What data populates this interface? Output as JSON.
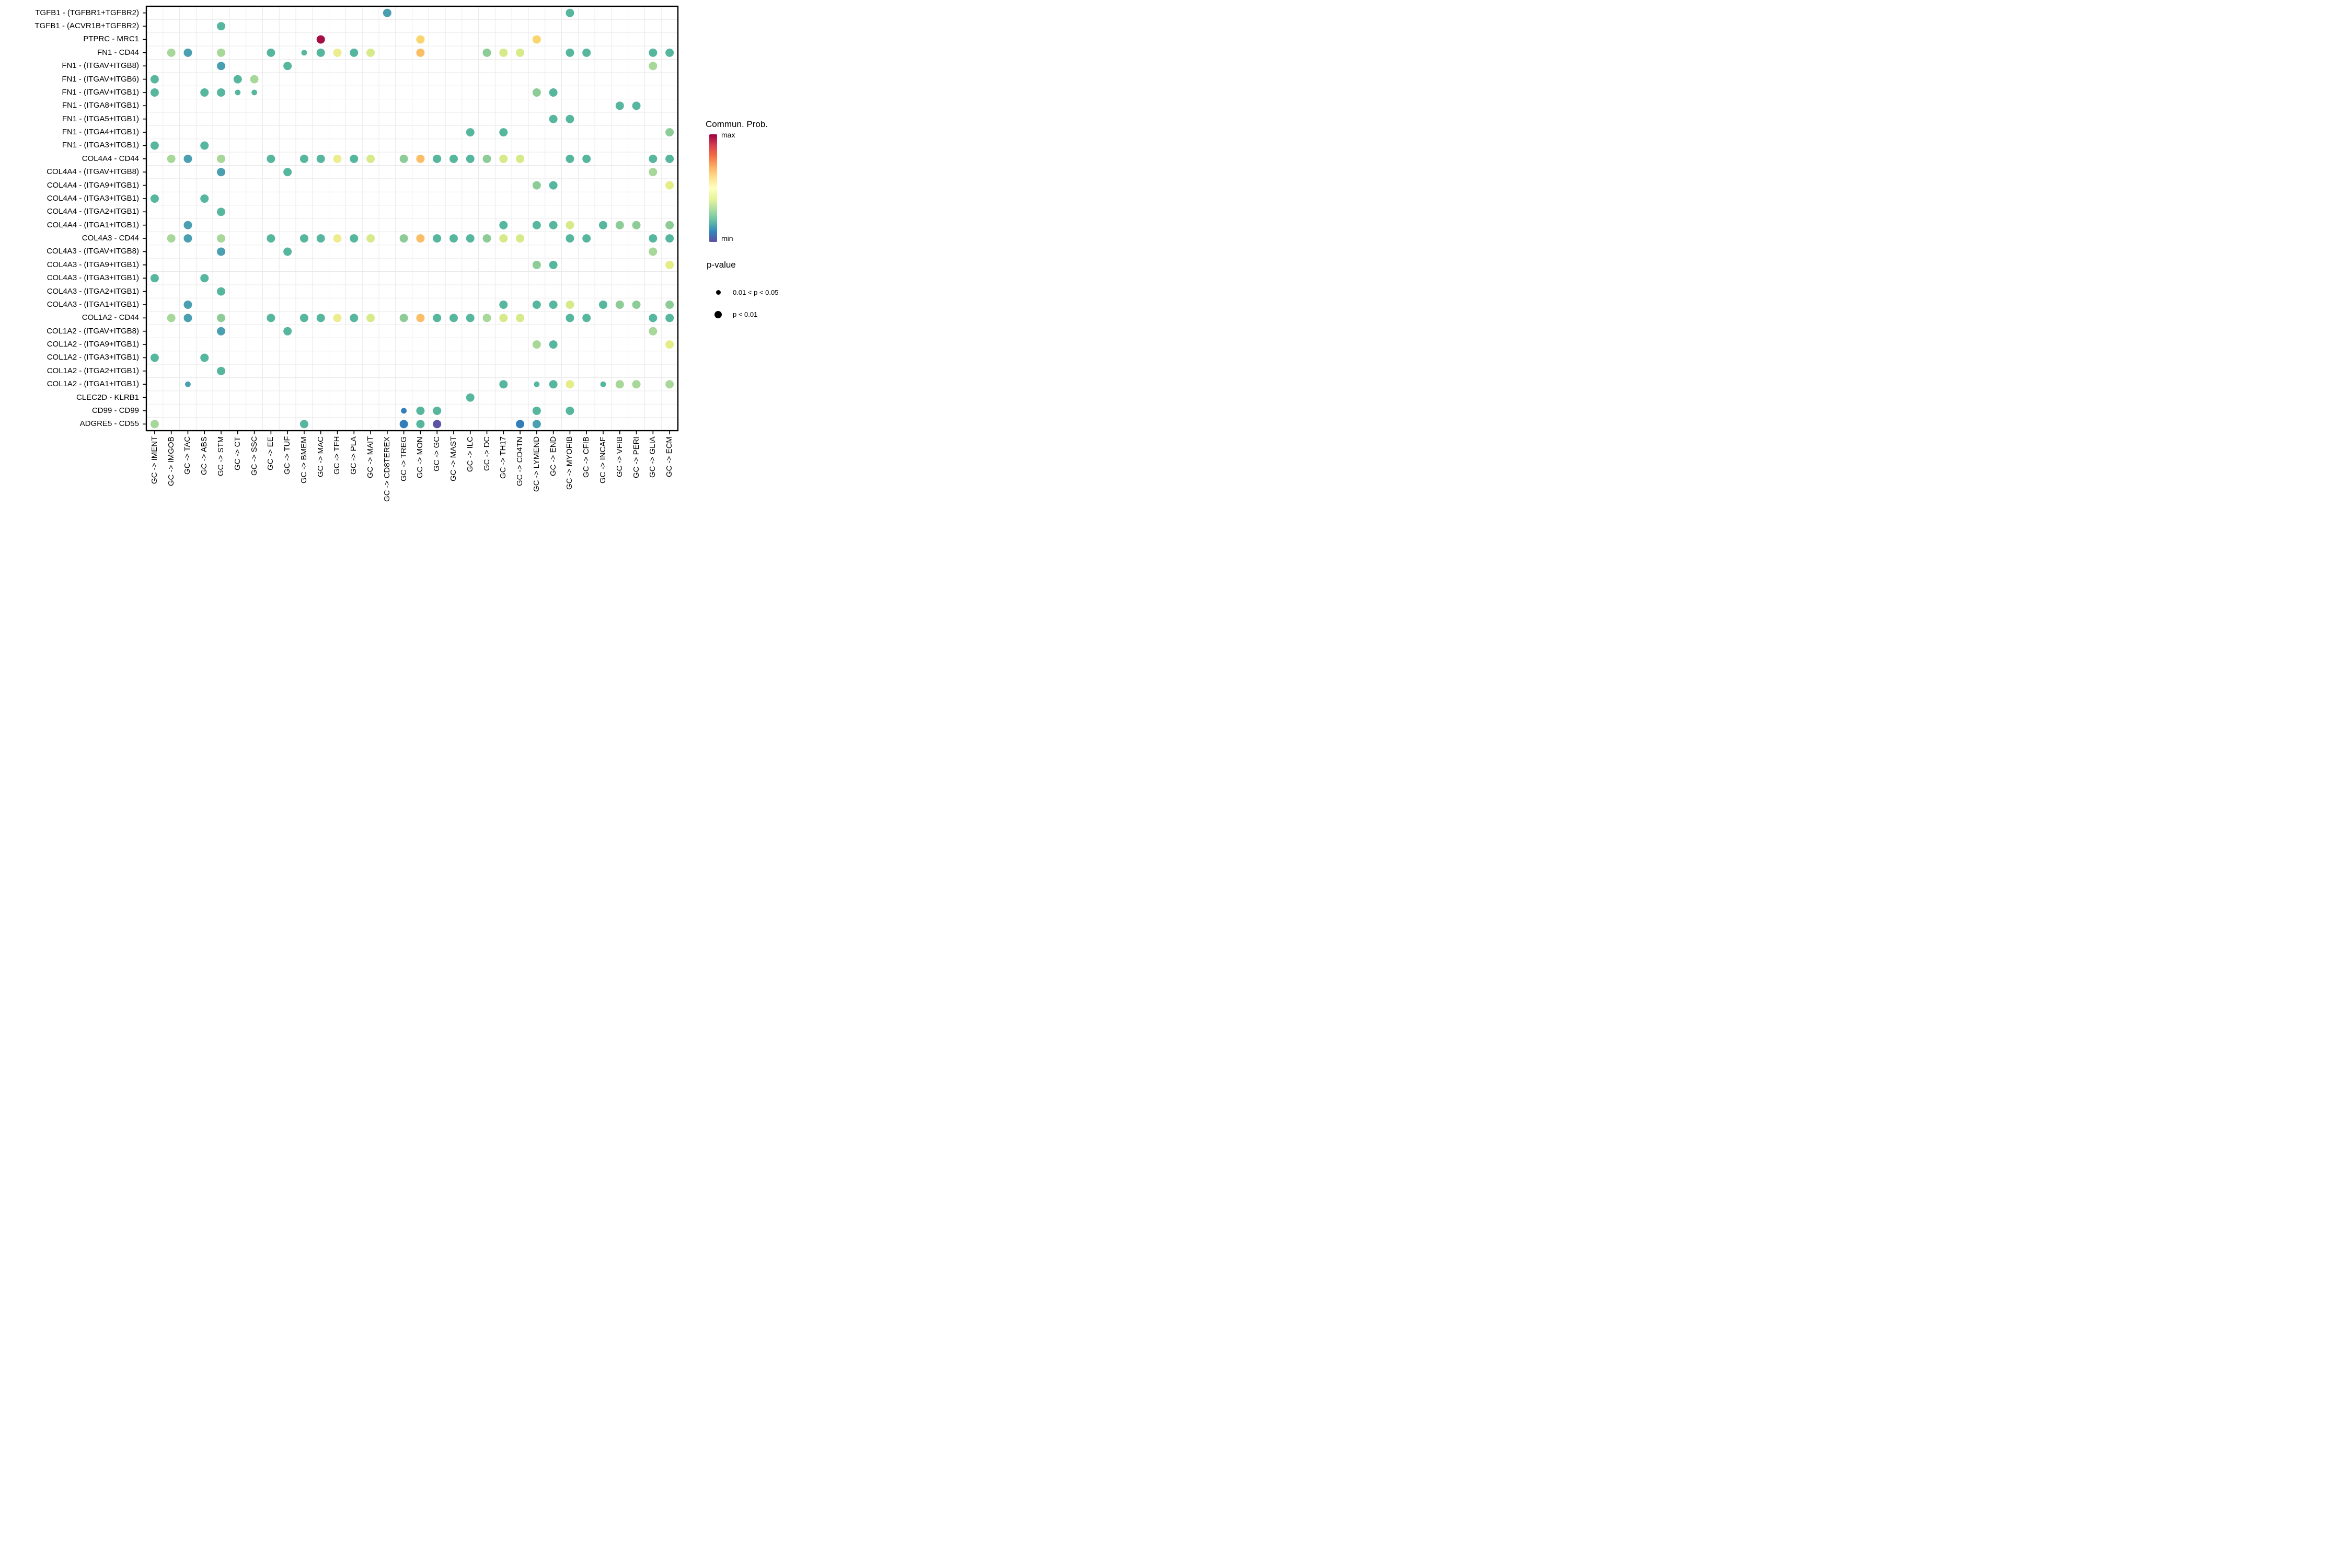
{
  "chart_data": {
    "type": "scatter",
    "subtype": "bubble-dotplot",
    "title": "",
    "xlabel": "",
    "ylabel": "",
    "grid": "on",
    "x_categories": [
      "GC -> IMENT",
      "GC -> IMGOB",
      "GC -> TAC",
      "GC -> ABS",
      "GC -> STM",
      "GC -> CT",
      "GC -> SSC",
      "GC -> EE",
      "GC -> TUF",
      "GC -> BMEM",
      "GC -> MAC",
      "GC -> TFH",
      "GC -> PLA",
      "GC -> MAIT",
      "GC -> CD8TEREX",
      "GC -> TREG",
      "GC -> MON",
      "GC -> GC",
      "GC -> MAST",
      "GC -> ILC",
      "GC -> DC",
      "GC -> TH17",
      "GC -> CD4TN",
      "GC -> LYMEND",
      "GC -> END",
      "GC -> MYOFIB",
      "GC -> CFIB",
      "GC -> INCAF",
      "GC -> VFIB",
      "GC -> PERI",
      "GC -> GLIA",
      "GC -> ECM"
    ],
    "y_categories": [
      "TGFB1 - (TGFBR1+TGFBR2)",
      "TGFB1 - (ACVR1B+TGFBR2)",
      "PTPRC - MRC1",
      "FN1 - CD44",
      "FN1 - (ITGAV+ITGB8)",
      "FN1 - (ITGAV+ITGB6)",
      "FN1 - (ITGAV+ITGB1)",
      "FN1 - (ITGA8+ITGB1)",
      "FN1 - (ITGA5+ITGB1)",
      "FN1 - (ITGA4+ITGB1)",
      "FN1 - (ITGA3+ITGB1)",
      "COL4A4 - CD44",
      "COL4A4 - (ITGAV+ITGB8)",
      "COL4A4 - (ITGA9+ITGB1)",
      "COL4A4 - (ITGA3+ITGB1)",
      "COL4A4 - (ITGA2+ITGB1)",
      "COL4A4 - (ITGA1+ITGB1)",
      "COL4A3 - CD44",
      "COL4A3 - (ITGAV+ITGB8)",
      "COL4A3 - (ITGA9+ITGB1)",
      "COL4A3 - (ITGA3+ITGB1)",
      "COL4A3 - (ITGA2+ITGB1)",
      "COL4A3 - (ITGA1+ITGB1)",
      "COL1A2 - CD44",
      "COL1A2 - (ITGAV+ITGB8)",
      "COL1A2 - (ITGA9+ITGB1)",
      "COL1A2 - (ITGA3+ITGB1)",
      "COL1A2 - (ITGA2+ITGB1)",
      "COL1A2 - (ITGA1+ITGB1)",
      "CLEC2D - KLRB1",
      "CD99 - CD99",
      "ADGRE5 - CD55"
    ],
    "palette": {
      "red": "#A60C45",
      "amber": "#FAD46E",
      "orange": "#FBBE66",
      "yellow": "#EDEC8F",
      "yellowgreen": "#D6EA89",
      "limeyellow": "#E4ED86",
      "lightgreen": "#A8D79A",
      "green": "#8DCC97",
      "teal": "#57B79E",
      "steelblue": "#4A9FB1",
      "blue": "#337EB8",
      "purple": "#5B53A4"
    },
    "size_encoding": {
      "L": "p < 0.01",
      "S": "0.01 < p < 0.05"
    },
    "points": [
      [
        1,
        15,
        "steelblue",
        "L"
      ],
      [
        1,
        26,
        "teal",
        "L"
      ],
      [
        2,
        5,
        "teal",
        "L"
      ],
      [
        3,
        11,
        "red",
        "L"
      ],
      [
        3,
        17,
        "amber",
        "L"
      ],
      [
        3,
        24,
        "amber",
        "L"
      ],
      [
        4,
        2,
        "lightgreen",
        "L"
      ],
      [
        4,
        3,
        "steelblue",
        "L"
      ],
      [
        4,
        5,
        "lightgreen",
        "L"
      ],
      [
        4,
        8,
        "teal",
        "L"
      ],
      [
        4,
        10,
        "teal",
        "S"
      ],
      [
        4,
        11,
        "teal",
        "L"
      ],
      [
        4,
        12,
        "yellow",
        "L"
      ],
      [
        4,
        13,
        "teal",
        "L"
      ],
      [
        4,
        14,
        "yellowgreen",
        "L"
      ],
      [
        4,
        17,
        "orange",
        "L"
      ],
      [
        4,
        21,
        "green",
        "L"
      ],
      [
        4,
        22,
        "yellowgreen",
        "L"
      ],
      [
        4,
        23,
        "yellowgreen",
        "L"
      ],
      [
        4,
        26,
        "teal",
        "L"
      ],
      [
        4,
        27,
        "teal",
        "L"
      ],
      [
        4,
        31,
        "teal",
        "L"
      ],
      [
        4,
        32,
        "teal",
        "L"
      ],
      [
        5,
        5,
        "steelblue",
        "L"
      ],
      [
        5,
        9,
        "teal",
        "L"
      ],
      [
        5,
        31,
        "lightgreen",
        "L"
      ],
      [
        6,
        1,
        "teal",
        "L"
      ],
      [
        6,
        6,
        "teal",
        "L"
      ],
      [
        6,
        7,
        "lightgreen",
        "L"
      ],
      [
        7,
        1,
        "teal",
        "L"
      ],
      [
        7,
        4,
        "teal",
        "L"
      ],
      [
        7,
        5,
        "teal",
        "L"
      ],
      [
        7,
        6,
        "teal",
        "S"
      ],
      [
        7,
        7,
        "teal",
        "S"
      ],
      [
        7,
        24,
        "green",
        "L"
      ],
      [
        7,
        25,
        "teal",
        "L"
      ],
      [
        8,
        29,
        "teal",
        "L"
      ],
      [
        8,
        30,
        "teal",
        "L"
      ],
      [
        9,
        25,
        "teal",
        "L"
      ],
      [
        9,
        26,
        "teal",
        "L"
      ],
      [
        10,
        20,
        "teal",
        "L"
      ],
      [
        10,
        22,
        "teal",
        "L"
      ],
      [
        10,
        32,
        "green",
        "L"
      ],
      [
        11,
        1,
        "teal",
        "L"
      ],
      [
        11,
        4,
        "teal",
        "L"
      ],
      [
        12,
        2,
        "lightgreen",
        "L"
      ],
      [
        12,
        3,
        "steelblue",
        "L"
      ],
      [
        12,
        5,
        "lightgreen",
        "L"
      ],
      [
        12,
        8,
        "teal",
        "L"
      ],
      [
        12,
        10,
        "teal",
        "L"
      ],
      [
        12,
        11,
        "teal",
        "L"
      ],
      [
        12,
        12,
        "yellow",
        "L"
      ],
      [
        12,
        13,
        "teal",
        "L"
      ],
      [
        12,
        14,
        "yellowgreen",
        "L"
      ],
      [
        12,
        16,
        "green",
        "L"
      ],
      [
        12,
        17,
        "orange",
        "L"
      ],
      [
        12,
        18,
        "teal",
        "L"
      ],
      [
        12,
        19,
        "teal",
        "L"
      ],
      [
        12,
        20,
        "teal",
        "L"
      ],
      [
        12,
        21,
        "green",
        "L"
      ],
      [
        12,
        22,
        "yellowgreen",
        "L"
      ],
      [
        12,
        23,
        "yellowgreen",
        "L"
      ],
      [
        12,
        26,
        "teal",
        "L"
      ],
      [
        12,
        27,
        "teal",
        "L"
      ],
      [
        12,
        31,
        "teal",
        "L"
      ],
      [
        12,
        32,
        "teal",
        "L"
      ],
      [
        13,
        5,
        "steelblue",
        "L"
      ],
      [
        13,
        9,
        "teal",
        "L"
      ],
      [
        13,
        31,
        "lightgreen",
        "L"
      ],
      [
        14,
        24,
        "green",
        "L"
      ],
      [
        14,
        25,
        "teal",
        "L"
      ],
      [
        14,
        32,
        "limeyellow",
        "L"
      ],
      [
        15,
        1,
        "teal",
        "L"
      ],
      [
        15,
        4,
        "teal",
        "L"
      ],
      [
        16,
        5,
        "teal",
        "L"
      ],
      [
        17,
        3,
        "steelblue",
        "L"
      ],
      [
        17,
        22,
        "teal",
        "L"
      ],
      [
        17,
        24,
        "teal",
        "L"
      ],
      [
        17,
        25,
        "teal",
        "L"
      ],
      [
        17,
        26,
        "yellowgreen",
        "L"
      ],
      [
        17,
        28,
        "teal",
        "L"
      ],
      [
        17,
        29,
        "green",
        "L"
      ],
      [
        17,
        30,
        "green",
        "L"
      ],
      [
        17,
        32,
        "green",
        "L"
      ],
      [
        18,
        2,
        "lightgreen",
        "L"
      ],
      [
        18,
        3,
        "steelblue",
        "L"
      ],
      [
        18,
        5,
        "lightgreen",
        "L"
      ],
      [
        18,
        8,
        "teal",
        "L"
      ],
      [
        18,
        10,
        "teal",
        "L"
      ],
      [
        18,
        11,
        "teal",
        "L"
      ],
      [
        18,
        12,
        "yellow",
        "L"
      ],
      [
        18,
        13,
        "teal",
        "L"
      ],
      [
        18,
        14,
        "yellowgreen",
        "L"
      ],
      [
        18,
        16,
        "green",
        "L"
      ],
      [
        18,
        17,
        "orange",
        "L"
      ],
      [
        18,
        18,
        "teal",
        "L"
      ],
      [
        18,
        19,
        "teal",
        "L"
      ],
      [
        18,
        20,
        "teal",
        "L"
      ],
      [
        18,
        21,
        "green",
        "L"
      ],
      [
        18,
        22,
        "yellowgreen",
        "L"
      ],
      [
        18,
        23,
        "yellowgreen",
        "L"
      ],
      [
        18,
        26,
        "teal",
        "L"
      ],
      [
        18,
        27,
        "teal",
        "L"
      ],
      [
        18,
        31,
        "teal",
        "L"
      ],
      [
        18,
        32,
        "teal",
        "L"
      ],
      [
        19,
        5,
        "steelblue",
        "L"
      ],
      [
        19,
        9,
        "teal",
        "L"
      ],
      [
        19,
        31,
        "lightgreen",
        "L"
      ],
      [
        20,
        24,
        "green",
        "L"
      ],
      [
        20,
        25,
        "teal",
        "L"
      ],
      [
        20,
        32,
        "limeyellow",
        "L"
      ],
      [
        21,
        1,
        "teal",
        "L"
      ],
      [
        21,
        4,
        "teal",
        "L"
      ],
      [
        22,
        5,
        "teal",
        "L"
      ],
      [
        23,
        3,
        "steelblue",
        "L"
      ],
      [
        23,
        22,
        "teal",
        "L"
      ],
      [
        23,
        24,
        "teal",
        "L"
      ],
      [
        23,
        25,
        "teal",
        "L"
      ],
      [
        23,
        26,
        "yellowgreen",
        "L"
      ],
      [
        23,
        28,
        "teal",
        "L"
      ],
      [
        23,
        29,
        "green",
        "L"
      ],
      [
        23,
        30,
        "green",
        "L"
      ],
      [
        23,
        32,
        "green",
        "L"
      ],
      [
        24,
        2,
        "lightgreen",
        "L"
      ],
      [
        24,
        3,
        "steelblue",
        "L"
      ],
      [
        24,
        5,
        "green",
        "L"
      ],
      [
        24,
        8,
        "teal",
        "L"
      ],
      [
        24,
        10,
        "teal",
        "L"
      ],
      [
        24,
        11,
        "teal",
        "L"
      ],
      [
        24,
        12,
        "yellow",
        "L"
      ],
      [
        24,
        13,
        "teal",
        "L"
      ],
      [
        24,
        14,
        "yellowgreen",
        "L"
      ],
      [
        24,
        16,
        "green",
        "L"
      ],
      [
        24,
        17,
        "orange",
        "L"
      ],
      [
        24,
        18,
        "teal",
        "L"
      ],
      [
        24,
        19,
        "teal",
        "L"
      ],
      [
        24,
        20,
        "teal",
        "L"
      ],
      [
        24,
        21,
        "lightgreen",
        "L"
      ],
      [
        24,
        22,
        "yellowgreen",
        "L"
      ],
      [
        24,
        23,
        "yellowgreen",
        "L"
      ],
      [
        24,
        26,
        "teal",
        "L"
      ],
      [
        24,
        27,
        "teal",
        "L"
      ],
      [
        24,
        31,
        "teal",
        "L"
      ],
      [
        24,
        32,
        "teal",
        "L"
      ],
      [
        25,
        5,
        "steelblue",
        "L"
      ],
      [
        25,
        9,
        "teal",
        "L"
      ],
      [
        25,
        31,
        "lightgreen",
        "L"
      ],
      [
        26,
        24,
        "lightgreen",
        "L"
      ],
      [
        26,
        25,
        "teal",
        "L"
      ],
      [
        26,
        32,
        "limeyellow",
        "L"
      ],
      [
        27,
        1,
        "teal",
        "L"
      ],
      [
        27,
        4,
        "teal",
        "L"
      ],
      [
        28,
        5,
        "teal",
        "L"
      ],
      [
        29,
        3,
        "steelblue",
        "S"
      ],
      [
        29,
        22,
        "teal",
        "L"
      ],
      [
        29,
        24,
        "teal",
        "S"
      ],
      [
        29,
        25,
        "teal",
        "L"
      ],
      [
        29,
        26,
        "limeyellow",
        "L"
      ],
      [
        29,
        28,
        "teal",
        "S"
      ],
      [
        29,
        29,
        "lightgreen",
        "L"
      ],
      [
        29,
        30,
        "lightgreen",
        "L"
      ],
      [
        29,
        32,
        "lightgreen",
        "L"
      ],
      [
        30,
        20,
        "teal",
        "L"
      ],
      [
        31,
        16,
        "blue",
        "S"
      ],
      [
        31,
        17,
        "teal",
        "L"
      ],
      [
        31,
        18,
        "teal",
        "L"
      ],
      [
        31,
        24,
        "teal",
        "L"
      ],
      [
        31,
        26,
        "teal",
        "L"
      ],
      [
        32,
        1,
        "lightgreen",
        "L"
      ],
      [
        32,
        10,
        "teal",
        "L"
      ],
      [
        32,
        16,
        "blue",
        "L"
      ],
      [
        32,
        17,
        "teal",
        "L"
      ],
      [
        32,
        18,
        "purple",
        "L"
      ],
      [
        32,
        23,
        "blue",
        "L"
      ],
      [
        32,
        24,
        "steelblue",
        "L"
      ]
    ],
    "color_legend": {
      "title": "Commun. Prob.",
      "max_label": "max",
      "min_label": "min",
      "gradient_top_to_bottom": [
        "#9E0142",
        "#D53E4F",
        "#F46D43",
        "#FDAE61",
        "#FEE08B",
        "#FFFFBF",
        "#E6F598",
        "#ABDDA4",
        "#66C2A5",
        "#3288BD",
        "#5E4FA2"
      ]
    },
    "size_legend": {
      "title": "p-value",
      "items": [
        {
          "label": "0.01 < p < 0.05",
          "size": "small"
        },
        {
          "label": "p < 0.01",
          "size": "large"
        }
      ]
    }
  }
}
